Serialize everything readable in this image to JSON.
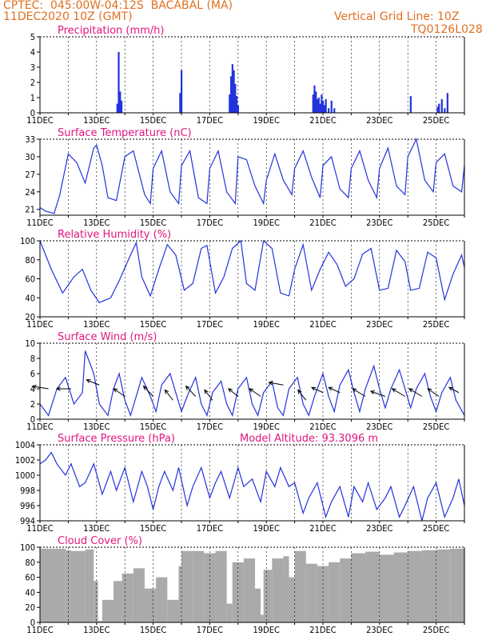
{
  "header": {
    "line1": "CPTEC:  045:00W-04:12S  BACABAL (MA)",
    "line2": "11DEC2020 10Z (GMT)",
    "right1": "Vertical Grid Line: 10Z",
    "right2": "TQ0126L028"
  },
  "colors": {
    "header": "#e07020",
    "title": "#e0157f",
    "line": "#2233dd",
    "cloud": "#aaaaaa",
    "wind_arrow": "#000000"
  },
  "x_tick_labels": [
    "11DEC",
    "13DEC",
    "15DEC",
    "17DEC",
    "19DEC",
    "21DEC",
    "23DEC",
    "25DEC"
  ],
  "model_altitude": "Model Altitude: 93.3096 m",
  "chart_data": [
    {
      "type": "bar",
      "title": "Precipitation (mm/h)",
      "ylim": [
        0,
        5
      ],
      "yticks": [
        "0",
        "1",
        "2",
        "3",
        "4",
        "5"
      ],
      "x_days": [
        2.73,
        2.78,
        2.83,
        2.88,
        4.95,
        5.0,
        6.7,
        6.75,
        6.8,
        6.85,
        6.9,
        6.95,
        7.0,
        9.65,
        9.7,
        9.75,
        9.8,
        9.85,
        9.9,
        9.95,
        10.0,
        10.05,
        10.1,
        10.2,
        10.3,
        10.4,
        13.1,
        14.05,
        14.1,
        14.2,
        14.3,
        14.4
      ],
      "values": [
        0.6,
        4.0,
        1.4,
        0.8,
        1.3,
        2.8,
        1.2,
        2.4,
        3.2,
        2.8,
        1.9,
        1.1,
        0.5,
        1.2,
        1.8,
        1.4,
        0.9,
        1.0,
        0.6,
        1.2,
        0.8,
        0.5,
        0.9,
        0.3,
        0.8,
        0.3,
        1.1,
        0.4,
        0.6,
        0.9,
        0.3,
        1.3
      ]
    },
    {
      "type": "line",
      "title": "Surface Temperature (nC)",
      "ylim": [
        20,
        33
      ],
      "yticks": [
        "21",
        "24",
        "27",
        "30",
        "33"
      ],
      "x": [
        0.0,
        0.2,
        0.5,
        0.7,
        1.0,
        1.3,
        1.6,
        1.9,
        2.0,
        2.2,
        2.4,
        2.7,
        3.0,
        3.3,
        3.7,
        3.9,
        4.0,
        4.3,
        4.6,
        4.9,
        5.0,
        5.3,
        5.6,
        5.9,
        6.0,
        6.3,
        6.6,
        6.9,
        7.0,
        7.3,
        7.6,
        7.9,
        8.0,
        8.3,
        8.6,
        8.9,
        9.0,
        9.3,
        9.6,
        9.9,
        10.0,
        10.3,
        10.6,
        10.9,
        11.0,
        11.3,
        11.6,
        11.9,
        12.0,
        12.3,
        12.6,
        12.9,
        13.0,
        13.3,
        13.6,
        13.9,
        14.0,
        14.3,
        14.6,
        14.9,
        15.0
      ],
      "values": [
        21.3,
        20.7,
        20.3,
        23.5,
        30.5,
        29.0,
        25.5,
        31.5,
        32.0,
        28.5,
        23.0,
        22.5,
        30.0,
        31.0,
        23.5,
        22.0,
        28.0,
        31.0,
        24.0,
        22.0,
        28.5,
        31.0,
        23.0,
        22.0,
        28.0,
        31.0,
        24.0,
        22.0,
        30.0,
        29.5,
        25.0,
        22.0,
        26.0,
        30.5,
        26.0,
        23.5,
        28.0,
        31.0,
        26.5,
        23.0,
        28.5,
        30.0,
        24.5,
        23.0,
        28.0,
        31.0,
        26.0,
        23.0,
        28.0,
        31.5,
        25.0,
        23.5,
        30.0,
        33.0,
        26.0,
        24.0,
        29.0,
        30.5,
        25.0,
        24.0,
        28.5
      ]
    },
    {
      "type": "line",
      "title": "Relative Humidity (%)",
      "ylim": [
        20,
        100
      ],
      "yticks": [
        "20",
        "40",
        "60",
        "80",
        "100"
      ],
      "x": [
        0.0,
        0.4,
        0.8,
        1.2,
        1.5,
        1.8,
        2.1,
        2.5,
        2.8,
        3.2,
        3.4,
        3.6,
        3.9,
        4.2,
        4.5,
        4.8,
        5.1,
        5.4,
        5.7,
        5.9,
        6.2,
        6.5,
        6.8,
        7.1,
        7.3,
        7.6,
        7.9,
        8.2,
        8.5,
        8.8,
        9.0,
        9.3,
        9.6,
        9.9,
        10.2,
        10.5,
        10.8,
        11.1,
        11.4,
        11.7,
        12.0,
        12.3,
        12.6,
        12.9,
        13.1,
        13.4,
        13.7,
        14.0,
        14.3,
        14.6,
        14.9,
        15.0
      ],
      "values": [
        100,
        70,
        45,
        62,
        70,
        48,
        35,
        40,
        58,
        85,
        98,
        62,
        42,
        70,
        96,
        85,
        48,
        55,
        92,
        95,
        45,
        62,
        92,
        100,
        55,
        48,
        100,
        92,
        45,
        42,
        70,
        96,
        48,
        70,
        88,
        75,
        52,
        60,
        86,
        92,
        48,
        50,
        90,
        78,
        48,
        50,
        88,
        82,
        38,
        65,
        85,
        72
      ]
    },
    {
      "type": "line",
      "title": "Surface Wind (m/s)",
      "ylim": [
        0,
        10
      ],
      "yticks": [
        "0",
        "2",
        "4",
        "6",
        "8",
        "10"
      ],
      "x": [
        0.0,
        0.3,
        0.6,
        0.9,
        1.2,
        1.5,
        1.6,
        1.9,
        2.1,
        2.4,
        2.6,
        2.8,
        3.0,
        3.2,
        3.4,
        3.6,
        3.9,
        4.1,
        4.3,
        4.6,
        4.8,
        5.0,
        5.2,
        5.5,
        5.7,
        5.9,
        6.1,
        6.4,
        6.6,
        6.8,
        7.0,
        7.3,
        7.5,
        7.7,
        7.9,
        8.2,
        8.4,
        8.6,
        8.8,
        9.1,
        9.3,
        9.5,
        9.7,
        10.0,
        10.2,
        10.4,
        10.6,
        10.9,
        11.1,
        11.3,
        11.5,
        11.8,
        12.0,
        12.2,
        12.4,
        12.7,
        12.9,
        13.1,
        13.3,
        13.6,
        13.8,
        14.0,
        14.2,
        14.5,
        14.7,
        15.0
      ],
      "values": [
        2.0,
        0.5,
        4.0,
        5.5,
        2.0,
        3.5,
        9.0,
        6.0,
        2.0,
        0.5,
        4.0,
        6.0,
        2.5,
        0.5,
        3.0,
        5.5,
        3.0,
        1.0,
        4.5,
        6.0,
        3.5,
        1.0,
        3.0,
        5.5,
        2.0,
        0.5,
        3.5,
        5.0,
        2.0,
        0.5,
        4.0,
        5.5,
        2.0,
        0.5,
        3.5,
        5.0,
        1.5,
        0.5,
        4.0,
        5.5,
        2.0,
        0.5,
        3.0,
        6.0,
        3.0,
        1.0,
        4.5,
        6.5,
        3.5,
        1.0,
        4.0,
        7.0,
        4.0,
        1.5,
        4.0,
        6.5,
        4.0,
        1.5,
        4.0,
        6.0,
        3.0,
        1.0,
        3.5,
        5.5,
        2.5,
        0.5
      ],
      "arrows_x": [
        0.3,
        1.1,
        2.1,
        3.0,
        4.0,
        4.7,
        5.5,
        6.1,
        7.0,
        7.8,
        8.6,
        9.4,
        10.0,
        10.6,
        11.5,
        12.2,
        12.9,
        13.5,
        14.1,
        14.8
      ],
      "arrows_y": [
        4.0,
        4.0,
        4.5,
        3.0,
        3.0,
        2.5,
        3.0,
        2.5,
        3.0,
        3.0,
        4.5,
        2.5,
        3.5,
        3.5,
        3.0,
        3.0,
        3.0,
        3.0,
        3.0,
        3.5
      ],
      "arrows_u": [
        -1.0,
        -0.9,
        -0.8,
        -0.7,
        -0.6,
        -0.5,
        -0.6,
        -0.5,
        -0.6,
        -0.7,
        -0.9,
        -0.5,
        -0.7,
        -0.7,
        -0.8,
        -0.9,
        -0.8,
        -0.8,
        -0.7,
        -0.6
      ],
      "arrows_v": [
        0.1,
        0.0,
        0.2,
        0.3,
        0.4,
        0.4,
        0.4,
        0.4,
        0.3,
        0.3,
        0.1,
        0.4,
        0.2,
        0.2,
        0.3,
        0.2,
        0.3,
        0.3,
        0.3,
        0.2
      ]
    },
    {
      "type": "line",
      "title": "Surface Pressure (hPa)",
      "ylim": [
        994,
        1004
      ],
      "yticks": [
        "994",
        "996",
        "998",
        "1000",
        "1002",
        "1004"
      ],
      "x": [
        0.0,
        0.2,
        0.4,
        0.6,
        0.9,
        1.1,
        1.4,
        1.6,
        1.9,
        2.2,
        2.5,
        2.7,
        3.0,
        3.3,
        3.6,
        3.8,
        4.0,
        4.2,
        4.4,
        4.7,
        4.9,
        5.2,
        5.4,
        5.7,
        6.0,
        6.2,
        6.4,
        6.7,
        7.0,
        7.2,
        7.5,
        7.8,
        8.0,
        8.3,
        8.5,
        8.8,
        9.0,
        9.3,
        9.5,
        9.8,
        10.1,
        10.3,
        10.6,
        10.9,
        11.1,
        11.4,
        11.6,
        11.9,
        12.2,
        12.4,
        12.7,
        12.9,
        13.2,
        13.5,
        13.7,
        14.0,
        14.3,
        14.6,
        14.8,
        15.0
      ],
      "values": [
        1001.5,
        1002.0,
        1003.0,
        1001.5,
        1000.0,
        1001.5,
        998.5,
        999.0,
        1001.5,
        997.5,
        1000.5,
        998.0,
        1001.0,
        996.5,
        1000.5,
        998.5,
        995.5,
        998.5,
        1000.5,
        998.0,
        1001.0,
        996.0,
        998.5,
        1001.0,
        997.0,
        999.0,
        1000.5,
        997.0,
        1001.0,
        998.5,
        999.5,
        996.5,
        1000.5,
        998.5,
        1001.0,
        998.5,
        999.0,
        995.0,
        997.0,
        999.0,
        994.5,
        996.5,
        998.5,
        994.5,
        998.5,
        996.5,
        999.0,
        995.5,
        997.0,
        998.5,
        994.5,
        996.0,
        998.5,
        994.0,
        997.0,
        999.0,
        994.5,
        997.0,
        999.5,
        996.0
      ]
    },
    {
      "type": "bar",
      "title": "Cloud Cover (%)",
      "ylim": [
        0,
        100
      ],
      "yticks": [
        "0",
        "20",
        "40",
        "60",
        "80",
        "100"
      ],
      "x_start": [
        0.0,
        0.9,
        1.1,
        1.6,
        1.9,
        2.05,
        2.2,
        2.6,
        2.9,
        3.3,
        3.7,
        4.1,
        4.5,
        4.9,
        5.0,
        5.4,
        5.8,
        6.2,
        6.6,
        6.8,
        7.2,
        7.6,
        7.8,
        7.9,
        8.2,
        8.6,
        8.8,
        9.0,
        9.4,
        9.8,
        10.2,
        10.6,
        11.0,
        11.5,
        12.0,
        12.5,
        13.0,
        13.5,
        14.0,
        14.5
      ],
      "x_end": [
        0.9,
        1.1,
        1.6,
        1.9,
        2.05,
        2.2,
        2.6,
        2.9,
        3.3,
        3.7,
        4.1,
        4.5,
        4.9,
        5.0,
        5.4,
        5.8,
        6.2,
        6.6,
        6.8,
        7.2,
        7.6,
        7.8,
        7.9,
        8.2,
        8.6,
        8.8,
        9.0,
        9.4,
        9.8,
        10.2,
        10.6,
        11.0,
        11.5,
        12.0,
        12.5,
        13.0,
        13.5,
        14.0,
        14.5,
        15.0
      ],
      "values": [
        98,
        96,
        95,
        97,
        55,
        2,
        30,
        55,
        65,
        72,
        45,
        60,
        30,
        75,
        95,
        95,
        92,
        95,
        25,
        80,
        85,
        45,
        10,
        70,
        85,
        88,
        60,
        95,
        78,
        75,
        80,
        85,
        92,
        94,
        90,
        93,
        95,
        96,
        97,
        98
      ]
    }
  ]
}
